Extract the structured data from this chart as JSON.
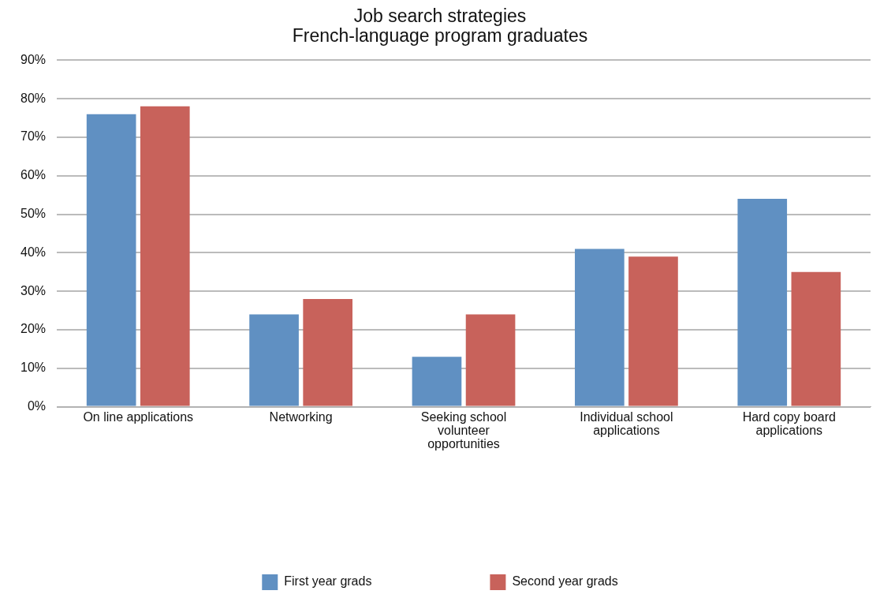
{
  "chart_data": {
    "type": "bar",
    "title": "Job search strategies\nFrench-language program graduates",
    "categories": [
      "On line applications",
      "Networking",
      "Seeking school volunteer opportunities",
      "Individual school applications",
      "Hard copy board applications"
    ],
    "series": [
      {
        "name": "First year grads",
        "color": "#6090c2",
        "values": [
          76,
          24,
          13,
          41,
          54
        ]
      },
      {
        "name": "Second year grads",
        "color": "#c8625b",
        "values": [
          78,
          28,
          24,
          39,
          35
        ]
      }
    ],
    "ylim": [
      0,
      90
    ],
    "yticks": [
      {
        "value": 0,
        "label": "0%"
      },
      {
        "value": 10,
        "label": "10%"
      },
      {
        "value": 20,
        "label": "20%"
      },
      {
        "value": 30,
        "label": "30%"
      },
      {
        "value": 40,
        "label": "40%"
      },
      {
        "value": 50,
        "label": "50%"
      },
      {
        "value": 60,
        "label": "60%"
      },
      {
        "value": 70,
        "label": "70%"
      },
      {
        "value": 80,
        "label": "80%"
      },
      {
        "value": 90,
        "label": "90%"
      }
    ],
    "grid": "y",
    "legend": "bottom"
  }
}
